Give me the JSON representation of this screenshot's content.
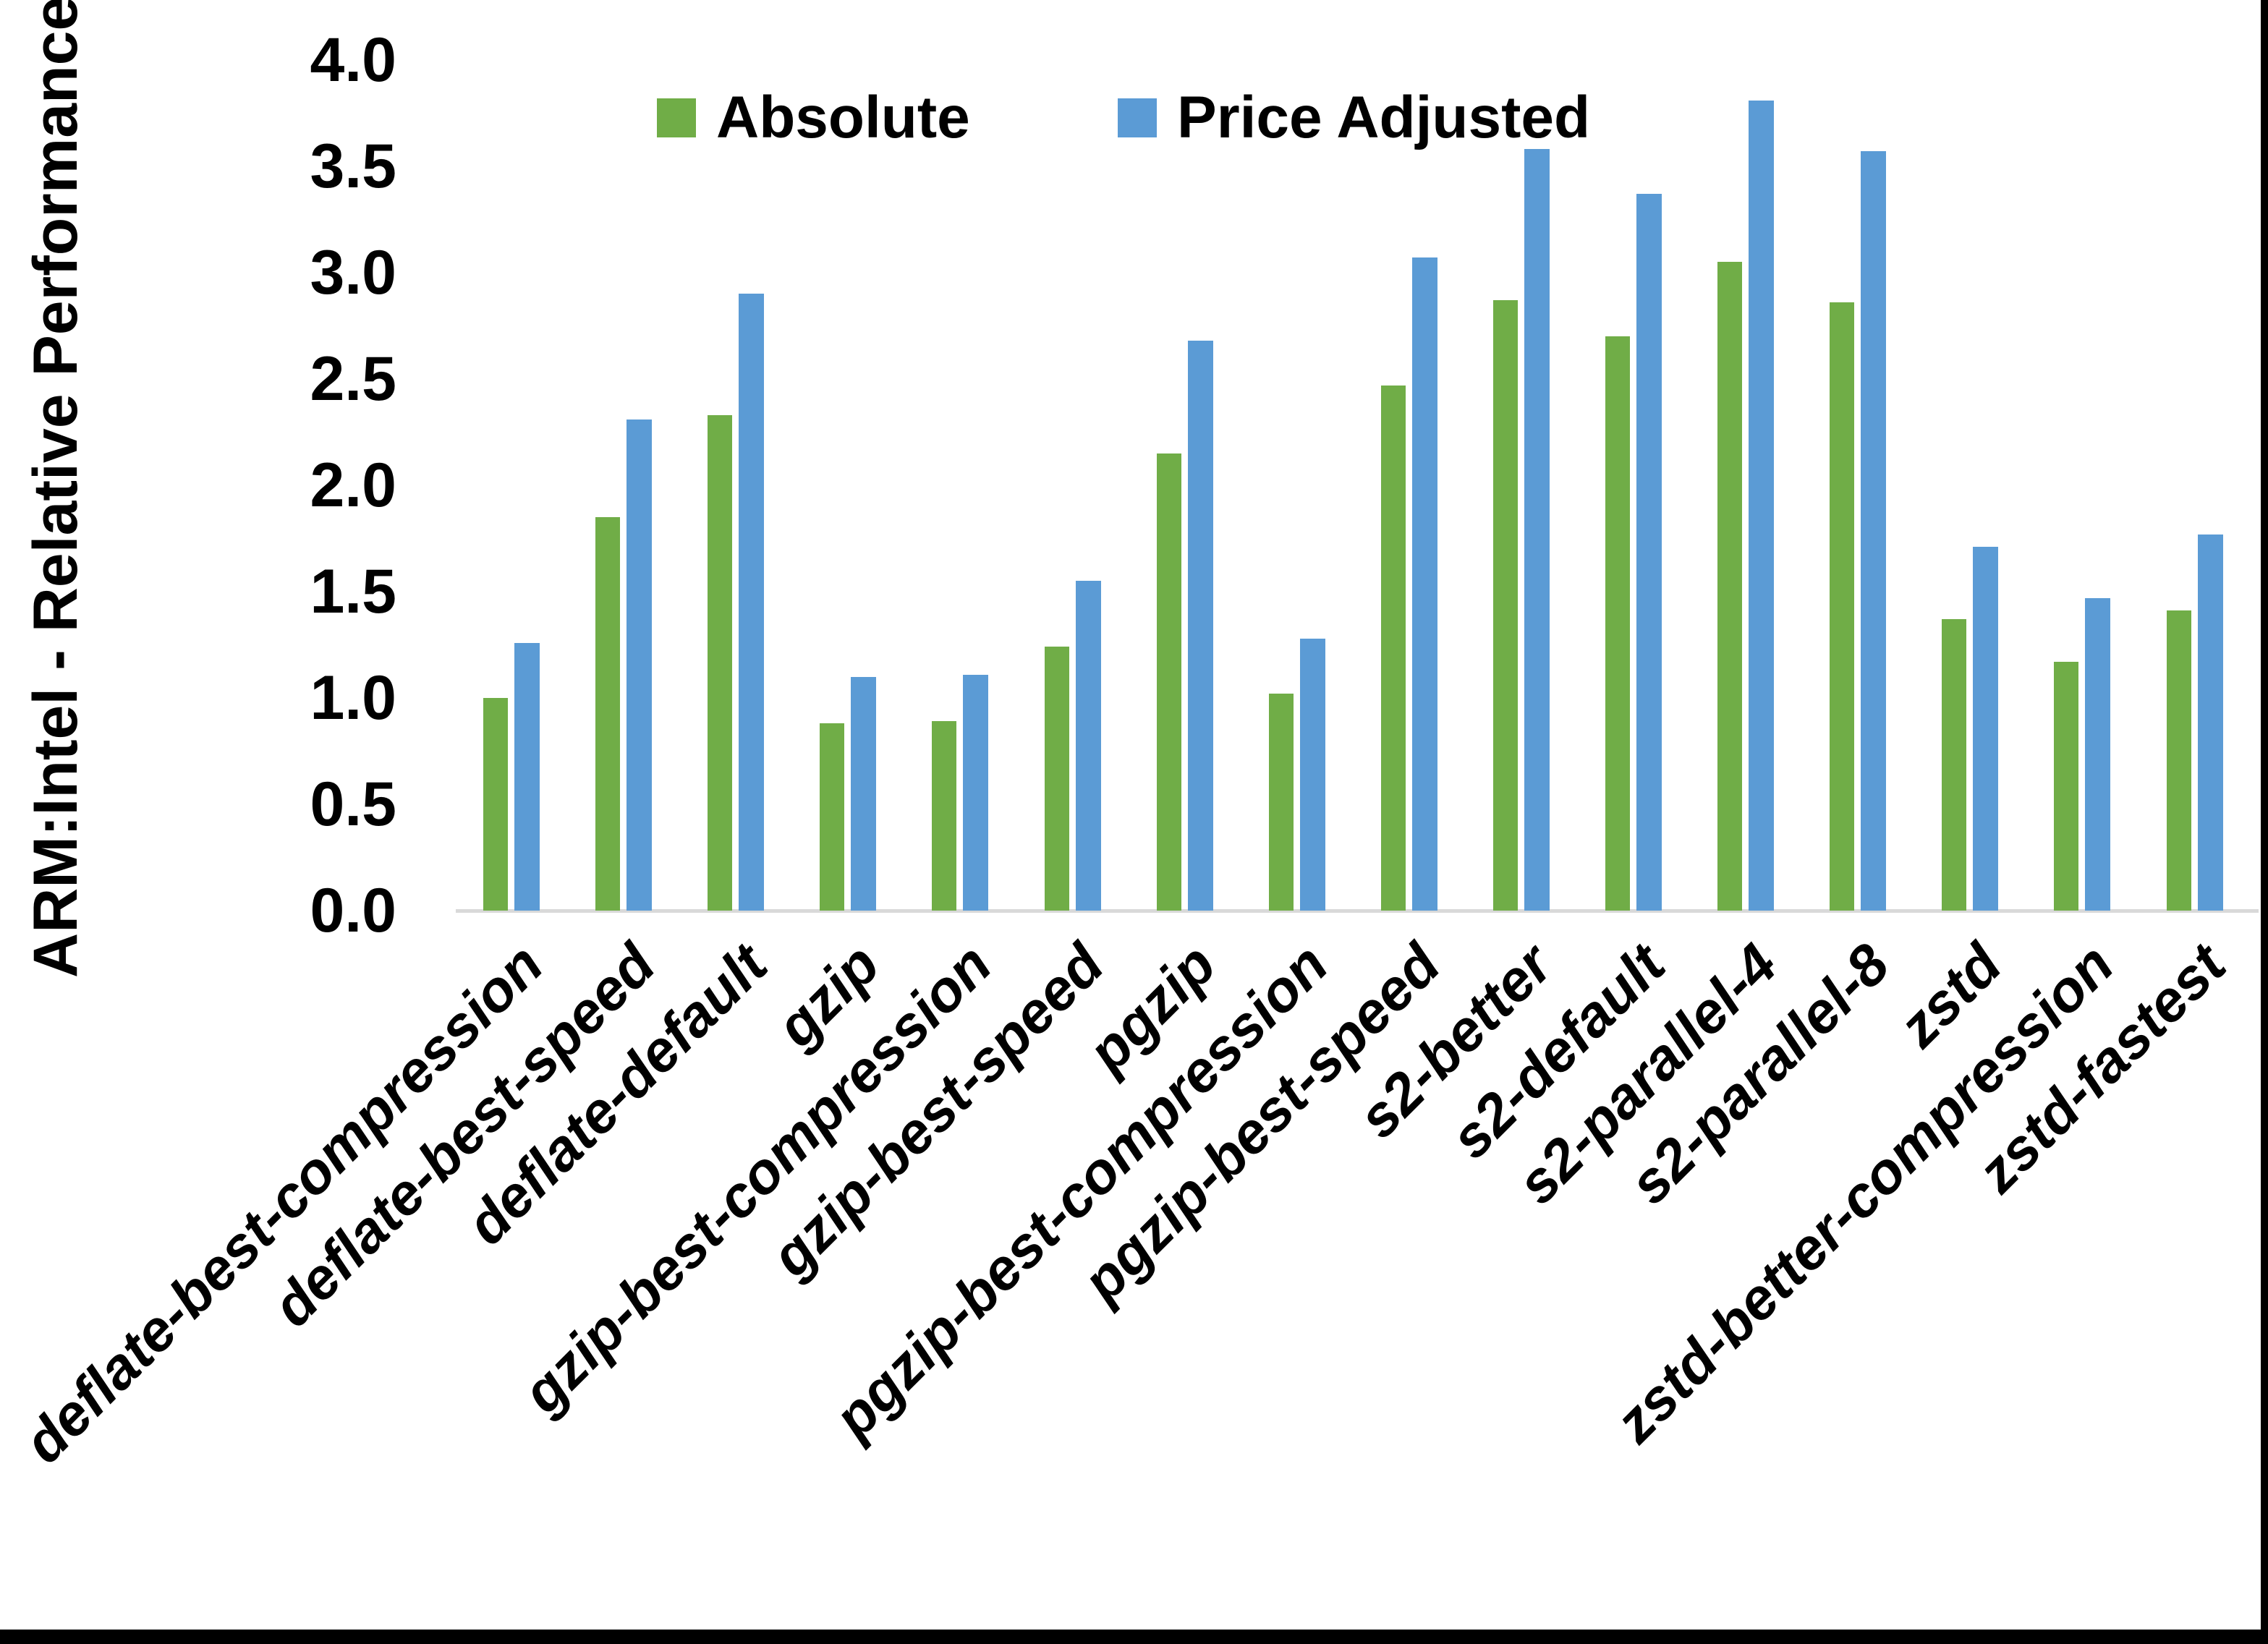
{
  "chart_data": {
    "type": "bar",
    "title": "",
    "ylabel": "ARM:Intel - Relative Performance",
    "xlabel": "",
    "categories": [
      "deflate-best-compression",
      "deflate-best-speed",
      "deflate-default",
      "gzip",
      "gzip-best-compression",
      "gzip-best-speed",
      "pgzip",
      "pgzip-best-compression",
      "pgzip-best-speed",
      "s2-better",
      "s2-default",
      "s2-parallel-4",
      "s2-parallel-8",
      "zstd",
      "zstd-better-compression",
      "zstd-fastest"
    ],
    "series": [
      {
        "name": "Absolute",
        "color": "#70AD47",
        "values": [
          1.0,
          1.85,
          2.33,
          0.88,
          0.89,
          1.24,
          2.15,
          1.02,
          2.47,
          2.87,
          2.7,
          3.05,
          2.86,
          1.37,
          1.17,
          1.41
        ]
      },
      {
        "name": "Price Adjusted",
        "color": "#5B9BD5",
        "values": [
          1.26,
          2.31,
          2.9,
          1.1,
          1.11,
          1.55,
          2.68,
          1.28,
          3.07,
          3.58,
          3.37,
          3.81,
          3.57,
          1.71,
          1.47,
          1.77
        ]
      }
    ],
    "ylim": [
      0.0,
      4.0
    ],
    "ytick_step": 0.5,
    "ytick_labels": [
      "0.0",
      "0.5",
      "1.0",
      "1.5",
      "2.0",
      "2.5",
      "3.0",
      "3.5",
      "4.0"
    ],
    "grid": false,
    "legend_position": "top-center",
    "x_label_rotation_deg": 45
  },
  "colors": {
    "axis_line": "#d9d9d9",
    "text": "#000000",
    "background": "#ffffff",
    "frame_border": "#000000",
    "series_absolute": "#70AD47",
    "series_price_adjusted": "#5B9BD5"
  }
}
